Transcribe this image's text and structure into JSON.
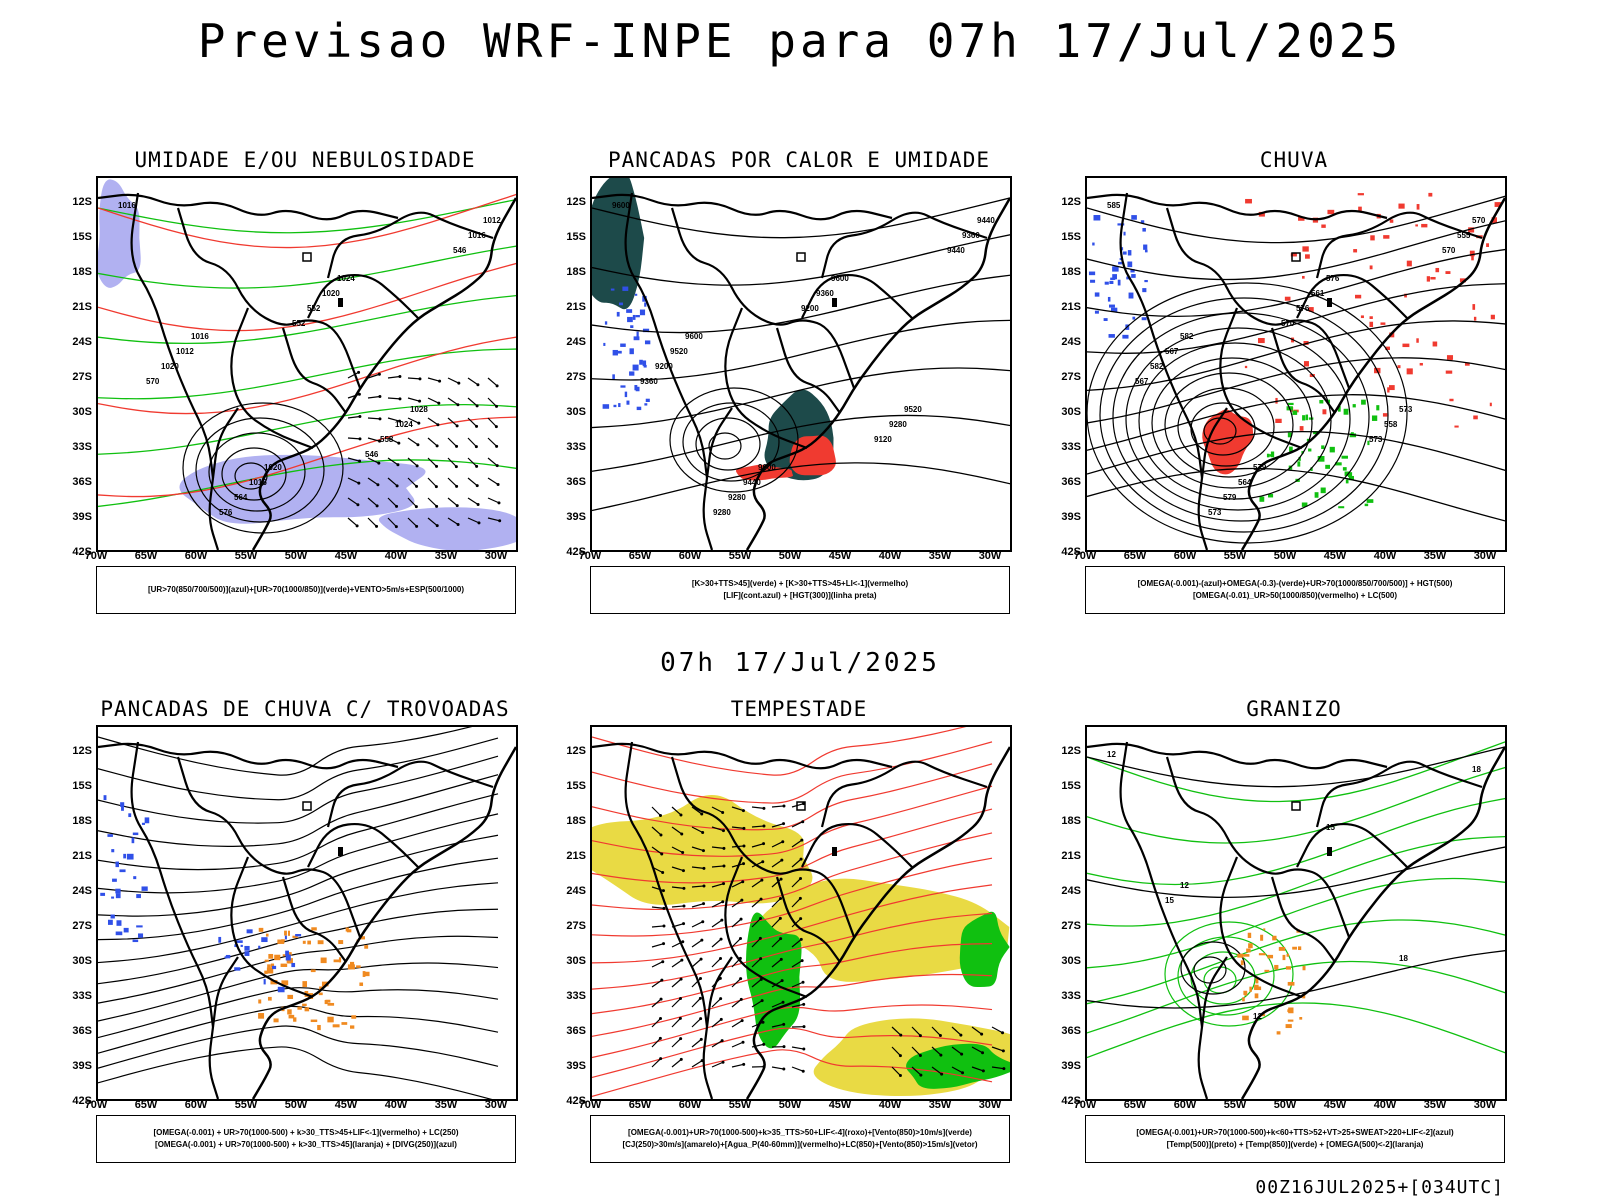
{
  "header": {
    "title": "Previsao WRF-INPE  para 07h 17/Jul/2025"
  },
  "middle_label": "07h 17/Jul/2025",
  "footer": "00Z16JUL2025+[034UTC]",
  "axes": {
    "lat_ticks": [
      "12S",
      "15S",
      "18S",
      "21S",
      "24S",
      "27S",
      "30S",
      "33S",
      "36S",
      "39S",
      "42S"
    ],
    "lon_ticks": [
      "70W",
      "65W",
      "60W",
      "55W",
      "50W",
      "45W",
      "40W",
      "35W",
      "30W"
    ]
  },
  "panels": [
    {
      "title": "UMIDADE E/OU NEBULOSIDADE",
      "legend": [
        "[UR>70(850/700/500)](azul)+[UR>70(1000/850)](verde)+VENTO>5m/s+ESP(500/1000)"
      ]
    },
    {
      "title": "PANCADAS POR CALOR E UMIDADE",
      "legend": [
        "[K>30+TTS>45](verde) + [K>30+TTS>45+LI<-1](vermelho)",
        "[LIF](cont.azul) + [HGT(300)](linha preta)"
      ]
    },
    {
      "title": "CHUVA",
      "legend": [
        "[OMEGA(-0.001)-(azul)+OMEGA(-0.3)-(verde)+UR>70(1000/850/700/500)] + HGT(500)",
        "[OMEGA(-0.01)_UR>50(1000/850)(vermelho) + LC(500)"
      ]
    },
    {
      "title": "PANCADAS DE CHUVA C/ TROVOADAS",
      "legend": [
        "[OMEGA(-0.001) + UR>70(1000-500) + k>30_TTS>45+LIF<-1](vermelho) + LC(250)",
        "[OMEGA(-0.001) + UR>70(1000-500) + k>30_TTS>45](laranja) + [DIVG(250)](azul)"
      ]
    },
    {
      "title": "TEMPESTADE",
      "legend": [
        "[OMEGA(-0.001)+UR>70(1000-500)+k>35_TTS>50+LIF<-4](roxo)+[Vento(850)>10m/s](verde)",
        "[CJ(250)>30m/s](amarelo)+[Agua_P(40-60mm)](vermelho)+LC(850)+[Vento(850)>15m/s](vetor)"
      ]
    },
    {
      "title": "GRANIZO",
      "legend": [
        "[OMEGA(-0.001)+UR>70(1000-500)+k<60+TTS>52+VT>25+SWEAT>220+LIF<-2](azul)",
        "[Temp(500)](preto) + [Temp(850)](verde) + [OMEGA(500)<-2](laranja)"
      ]
    }
  ],
  "contour_labels": {
    "p1": [
      "1016",
      "1016",
      "1020",
      "1024",
      "1028",
      "1012",
      "1012",
      "1016",
      "1020",
      "1024",
      "1016",
      "1020",
      "564",
      "552",
      "558",
      "546",
      "570",
      "576",
      "552",
      "546"
    ],
    "p2": [
      "9600",
      "9600",
      "9600",
      "9600",
      "9520",
      "9440",
      "9520",
      "9440",
      "9360",
      "9280",
      "9360",
      "9200",
      "9280",
      "9200",
      "9120",
      "9440",
      "9360",
      "9280"
    ],
    "p3": [
      "585",
      "582",
      "579",
      "576",
      "573",
      "570",
      "567",
      "564",
      "561",
      "558",
      "555",
      "582",
      "579",
      "576",
      "573",
      "570",
      "567",
      "573",
      "570"
    ],
    "p6": [
      "12",
      "12",
      "12",
      "15",
      "18",
      "18",
      "15"
    ]
  },
  "colors": {
    "blue": "#3050e8",
    "lightblue": "#a8a8f0",
    "green": "#10c010",
    "red": "#f03a30",
    "darkteal": "#1d4a4a",
    "orange": "#f08a20",
    "yellow": "#e8d83a",
    "contour": "#000000"
  }
}
